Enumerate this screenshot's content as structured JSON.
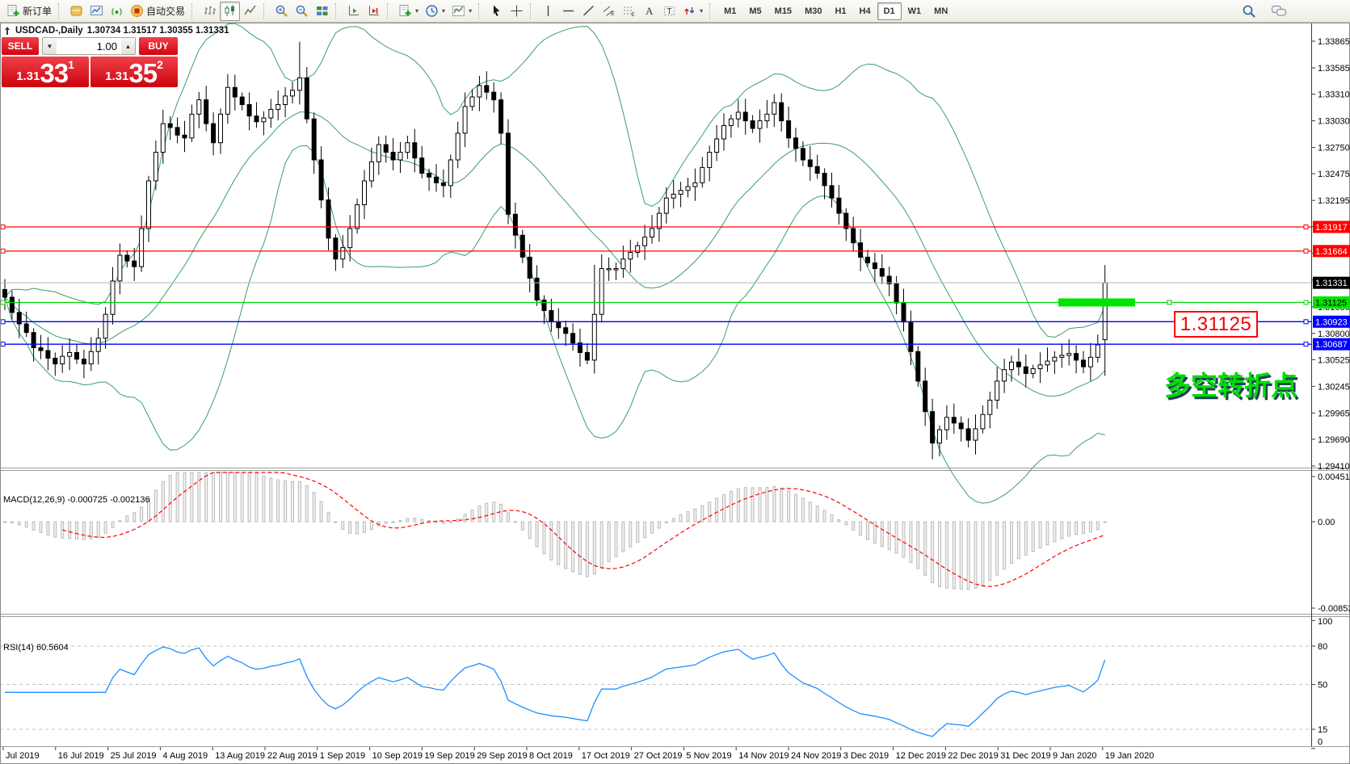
{
  "toolbar": {
    "groups": [
      {
        "items": [
          {
            "name": "new-order",
            "label": "新订单"
          }
        ]
      },
      {
        "items": [
          {
            "name": "market-watch"
          },
          {
            "name": "chart-window"
          },
          {
            "name": "signal"
          },
          {
            "name": "autotrade",
            "label": "自动交易"
          }
        ]
      },
      {
        "items": [
          {
            "name": "bar-chart"
          },
          {
            "name": "candlestick-chart",
            "active": true
          },
          {
            "name": "line-chart"
          }
        ]
      },
      {
        "items": [
          {
            "name": "zoom-in"
          },
          {
            "name": "zoom-out"
          },
          {
            "name": "tile-windows"
          }
        ]
      },
      {
        "items": [
          {
            "name": "auto-scroll"
          },
          {
            "name": "chart-shift"
          }
        ]
      },
      {
        "items": [
          {
            "name": "templates",
            "dropdown": true
          },
          {
            "name": "periods",
            "dropdown": true
          },
          {
            "name": "indicators-list",
            "dropdown": true
          }
        ]
      },
      {
        "items": [
          {
            "name": "cursor"
          },
          {
            "name": "crosshair"
          }
        ]
      },
      {
        "items": [
          {
            "name": "vertical-line"
          },
          {
            "name": "horizontal-line"
          },
          {
            "name": "trendline"
          },
          {
            "name": "equidistant-channel"
          },
          {
            "name": "fibonacci"
          },
          {
            "name": "text"
          },
          {
            "name": "text-label"
          },
          {
            "name": "arrows",
            "dropdown": true
          }
        ]
      }
    ],
    "timeframes": [
      "M1",
      "M5",
      "M15",
      "M30",
      "H1",
      "H4",
      "D1",
      "W1",
      "MN"
    ],
    "active_timeframe": "D1",
    "right_items": [
      {
        "name": "search"
      },
      {
        "name": "chat"
      }
    ]
  },
  "chart": {
    "title": "USDCAD-,Daily",
    "ohlc_text": "1.30734 1.31517 1.30355 1.31331"
  },
  "trade_panel": {
    "sell_label": "SELL",
    "buy_label": "BUY",
    "volume": "1.00",
    "sell_price_small": "1.31",
    "sell_price_big": "33",
    "sell_price_sup": "1",
    "buy_price_small": "1.31",
    "buy_price_big": "35",
    "buy_price_sup": "2"
  },
  "annotations": {
    "price_label": "1.31125",
    "turning_point": "多空转折点"
  },
  "indicators": {
    "macd": {
      "label_text": "MACD(12,26,9)",
      "values_text": "-0.000725 -0.002136"
    },
    "rsi": {
      "label_text": "RSI(14)",
      "value_text": "60.5604"
    }
  },
  "chart_data": {
    "type": "candlestick",
    "symbol": "USDCAD-",
    "timeframe": "Daily",
    "title_ohlc": {
      "open": 1.30734,
      "high": 1.31517,
      "low": 1.30355,
      "close": 1.31331
    },
    "first_open": 1.3126,
    "closes": [
      1.3118,
      1.3102,
      1.309,
      1.3081,
      1.3065,
      1.3062,
      1.3054,
      1.3048,
      1.3056,
      1.306,
      1.3053,
      1.3048,
      1.3061,
      1.3075,
      1.31,
      1.3135,
      1.3162,
      1.3156,
      1.315,
      1.319,
      1.324,
      1.327,
      1.33,
      1.3296,
      1.3288,
      1.3285,
      1.331,
      1.3325,
      1.33,
      1.328,
      1.331,
      1.3338,
      1.3328,
      1.332,
      1.3308,
      1.3302,
      1.3306,
      1.3315,
      1.332,
      1.3329,
      1.3335,
      1.3348,
      1.3305,
      1.3262,
      1.322,
      1.318,
      1.3158,
      1.317,
      1.319,
      1.3215,
      1.324,
      1.326,
      1.3278,
      1.327,
      1.3262,
      1.327,
      1.328,
      1.3264,
      1.3248,
      1.3244,
      1.3238,
      1.3235,
      1.3262,
      1.329,
      1.3318,
      1.3328,
      1.334,
      1.3333,
      1.3325,
      1.329,
      1.3205,
      1.3183,
      1.316,
      1.3138,
      1.3115,
      1.3104,
      1.3092,
      1.3086,
      1.308,
      1.307,
      1.306,
      1.3052,
      1.31,
      1.3148,
      1.3148,
      1.3148,
      1.3158,
      1.3165,
      1.3172,
      1.3181,
      1.319,
      1.3206,
      1.3222,
      1.3226,
      1.323,
      1.3234,
      1.3238,
      1.3254,
      1.327,
      1.3284,
      1.3298,
      1.3305,
      1.3312,
      1.3303,
      1.3295,
      1.3303,
      1.331,
      1.3322,
      1.3303,
      1.3285,
      1.3274,
      1.3262,
      1.3255,
      1.3248,
      1.3235,
      1.3222,
      1.3206,
      1.319,
      1.3175,
      1.316,
      1.3154,
      1.3148,
      1.314,
      1.3132,
      1.3112,
      1.3092,
      1.3061,
      1.303,
      1.2998,
      1.2965,
      1.2979,
      1.2992,
      1.2986,
      1.298,
      1.2968,
      1.298,
      1.2995,
      1.301,
      1.303,
      1.3042,
      1.305,
      1.3045,
      1.3038,
      1.3043,
      1.3047,
      1.3051,
      1.3055,
      1.3057,
      1.3059,
      1.3052,
      1.3045,
      1.3055,
      1.3068,
      1.31331
    ],
    "wick_overrides": [
      {
        "i": 41,
        "h": 1.3386
      },
      {
        "i": 82,
        "h": 1.3152,
        "l": 1.3038
      },
      {
        "i": 107,
        "h": 1.3331
      },
      {
        "i": 129,
        "l": 1.2948
      }
    ],
    "x_axis_dates": [
      "Jul 2019",
      "16 Jul 2019",
      "25 Jul 2019",
      "4 Aug 2019",
      "13 Aug 2019",
      "22 Aug 2019",
      "1 Sep 2019",
      "10 Sep 2019",
      "19 Sep 2019",
      "29 Sep 2019",
      "8 Oct 2019",
      "17 Oct 2019",
      "27 Oct 2019",
      "5 Nov 2019",
      "14 Nov 2019",
      "24 Nov 2019",
      "3 Dec 2019",
      "12 Dec 2019",
      "22 Dec 2019",
      "31 Dec 2019",
      "9 Jan 2020",
      "19 Jan 2020"
    ],
    "y_axis_ticks": [
      1.33865,
      1.33585,
      1.3331,
      1.3303,
      1.3275,
      1.32475,
      1.32195,
      1.3192,
      1.3164,
      1.3136,
      1.3108,
      1.308,
      1.30525,
      1.30245,
      1.29965,
      1.2969,
      1.2941
    ],
    "levels": [
      {
        "price": 1.31917,
        "color": "#ff0000",
        "tag_bg": "#ff0000",
        "tag_fg": "#ffffff",
        "tag": "1.31917"
      },
      {
        "price": 1.31664,
        "color": "#ff0000",
        "tag_bg": "#ff0000",
        "tag_fg": "#ffffff",
        "tag": "1.31664"
      },
      {
        "price": 1.31331,
        "color": "#b9b9b9",
        "tag_bg": "#000000",
        "tag_fg": "#ffffff",
        "tag": "1.31331",
        "current": true
      },
      {
        "price": 1.31125,
        "color": "#00d800",
        "tag_bg": "#00e400",
        "tag_fg": "#000000",
        "tag": "1.31125"
      },
      {
        "price": 1.30923,
        "color": "#0000ff",
        "tag_bg": "#0000ff",
        "tag_fg": "#ffffff",
        "tag": "1.30923"
      },
      {
        "price": 1.30687,
        "color": "#0000ff",
        "tag_bg": "#0000ff",
        "tag_fg": "#ffffff",
        "tag": "1.30687"
      }
    ],
    "highlight_rect": {
      "price": 1.31125,
      "color": "#00e400"
    },
    "indicators": {
      "bollinger": {
        "period": 20,
        "deviation": 2,
        "color": "#3a9e6d"
      },
      "macd": {
        "fast": 12,
        "slow": 26,
        "signal": 9,
        "value": -0.000725,
        "signal_value": -0.002136,
        "axis_labels": [
          "0.004514",
          "0.00",
          "-0.008533"
        ],
        "hist_color": "#b9b9b9",
        "signal_color": "#ff0000"
      },
      "rsi": {
        "period": 14,
        "value": 60.5604,
        "color": "#1e90ff",
        "levels": [
          80,
          50,
          15
        ],
        "axis_labels": [
          "100",
          "80",
          "50",
          "15",
          "0"
        ],
        "axis_values": [
          100,
          80,
          50,
          15,
          0
        ]
      }
    }
  }
}
